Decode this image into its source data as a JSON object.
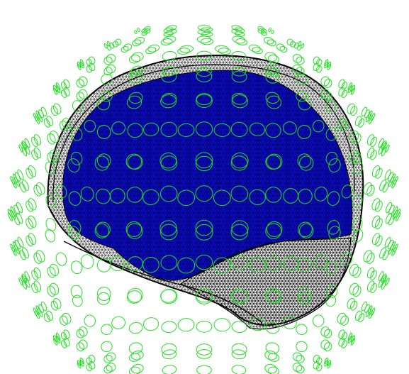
{
  "scene": {
    "background_color": "#ffffff",
    "brain_fill_color": "#0a0ac8",
    "mesh_line_color": "#000000",
    "sensor_color": "#22e022"
  },
  "icons": {
    "helmet": "sensor-helmet-icon",
    "brain": "brain-mesh-icon"
  }
}
